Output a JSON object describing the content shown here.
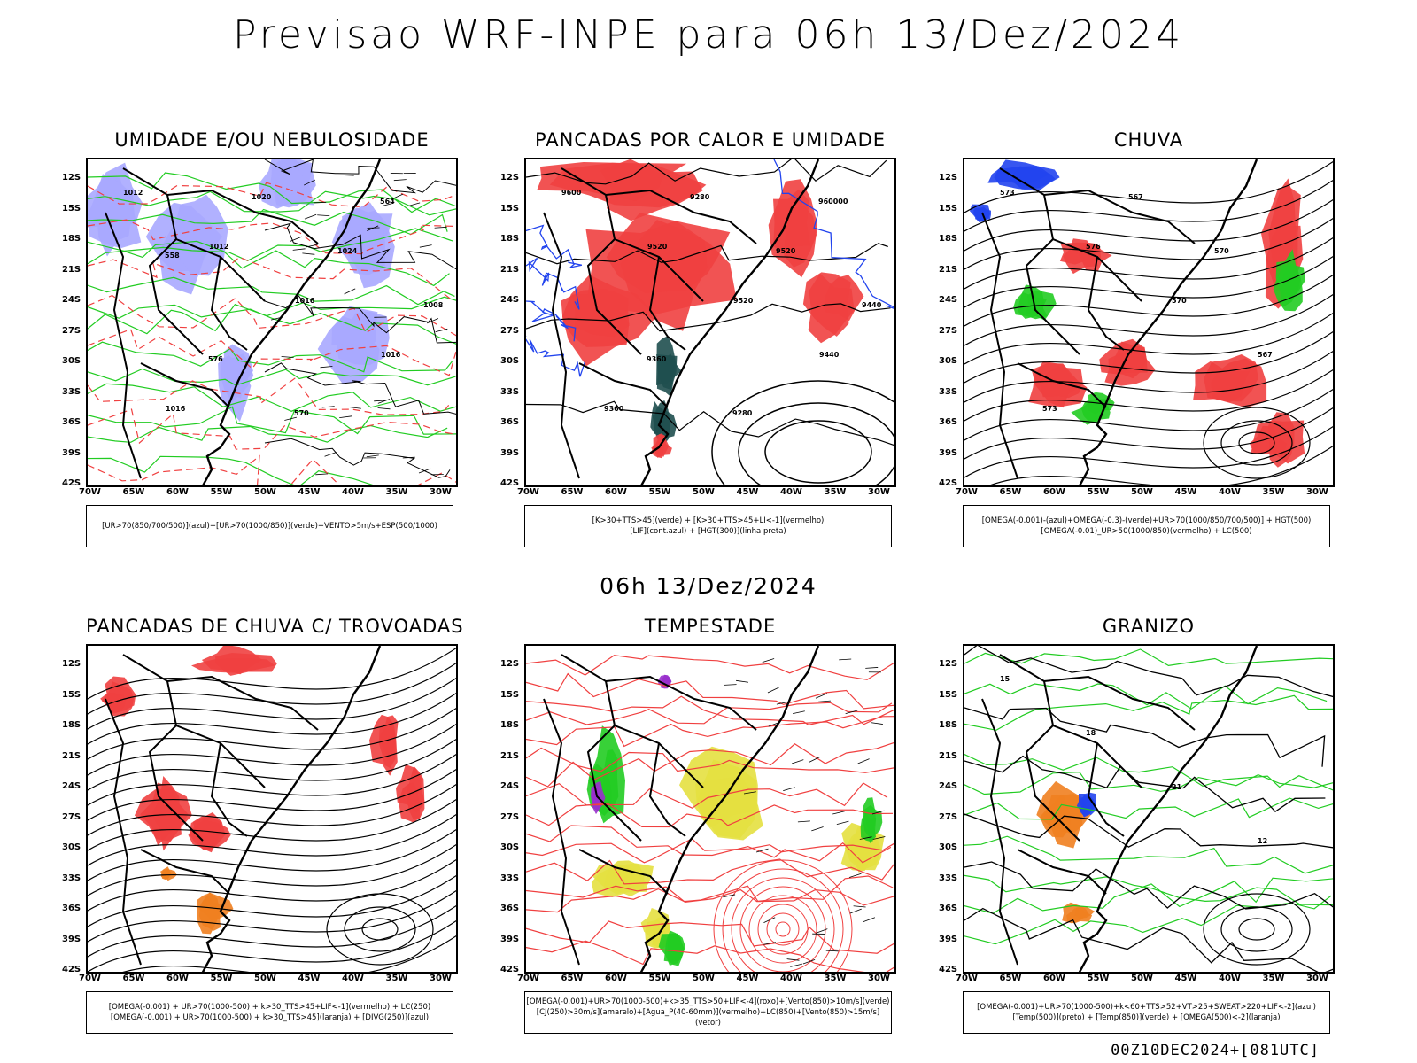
{
  "main_title": "Previsao WRF-INPE  para 06h 13/Dez/2024",
  "subtitle": "06h 13/Dez/2024",
  "footer": "00Z10DEC2024+[081UTC]",
  "lat_labels": [
    "12S",
    "15S",
    "18S",
    "21S",
    "24S",
    "27S",
    "30S",
    "33S",
    "36S",
    "39S",
    "42S"
  ],
  "lon_labels": [
    "70W",
    "65W",
    "60W",
    "55W",
    "50W",
    "45W",
    "40W",
    "35W",
    "30W"
  ],
  "colors": {
    "red": "#f04040",
    "green": "#22cc22",
    "blue": "#2244ee",
    "lavender": "#a8a8ff",
    "dark": "#1f4f4f",
    "yellow": "#e4e040",
    "orange": "#f08020",
    "purple": "#9930cc"
  },
  "panels": [
    {
      "title": "UMIDADE E/OU NEBULOSIDADE",
      "legend": [
        "[UR>70(850/700/500)](azul)+[UR>70(1000/850)](verde)+VENTO>5m/s+ESP(500/1000)"
      ]
    },
    {
      "title": "PANCADAS POR CALOR E UMIDADE",
      "legend": [
        "[K>30+TTS>45](verde) + [K>30+TTS>45+LI<-1](vermelho)",
        "[LIF](cont.azul) + [HGT(300)](linha preta)"
      ]
    },
    {
      "title": "CHUVA",
      "legend": [
        "[OMEGA(-0.001)-(azul)+OMEGA(-0.3)-(verde)+UR>70(1000/850/700/500)] + HGT(500)",
        "[OMEGA(-0.01)_UR>50(1000/850)(vermelho) + LC(500)"
      ]
    },
    {
      "title": "PANCADAS DE CHUVA C/ TROVOADAS",
      "legend": [
        "[OMEGA(-0.001) + UR>70(1000-500) + k>30_TTS>45+LIF<-1](vermelho) + LC(250)",
        "[OMEGA(-0.001) + UR>70(1000-500) + k>30_TTS>45](laranja) + [DIVG(250)](azul)"
      ]
    },
    {
      "title": "TEMPESTADE",
      "legend": [
        "[OMEGA(-0.001)+UR>70(1000-500)+k>35_TTS>50+LIF<-4](roxo)+[Vento(850)>10m/s](verde)",
        "[CJ(250)>30m/s](amarelo)+[Agua_P(40-60mm)](vermelho)+LC(850)+[Vento(850)>15m/s](vetor)"
      ]
    },
    {
      "title": "GRANIZO",
      "legend": [
        "[OMEGA(-0.001)+UR>70(1000-500)+k<60+TTS>52+VT>25+SWEAT>220+LIF<-2](azul)",
        "[Temp(500)](preto) + [Temp(850)](verde) + [OMEGA(500)<-2](laranja)"
      ]
    }
  ],
  "contour_labels": {
    "p1": [
      "1012",
      "1012",
      "1016",
      "1016",
      "1016",
      "1020",
      "1024",
      "1008",
      "576",
      "570",
      "564",
      "558"
    ],
    "p2": [
      "9600",
      "9520",
      "9520",
      "9440",
      "9360",
      "9280",
      "9520",
      "9440",
      "9360",
      "9280",
      "960000"
    ],
    "p3": [
      "573",
      "576",
      "570",
      "567",
      "573",
      "567",
      "570"
    ],
    "p6": [
      "15",
      "18",
      "21",
      "12"
    ]
  }
}
